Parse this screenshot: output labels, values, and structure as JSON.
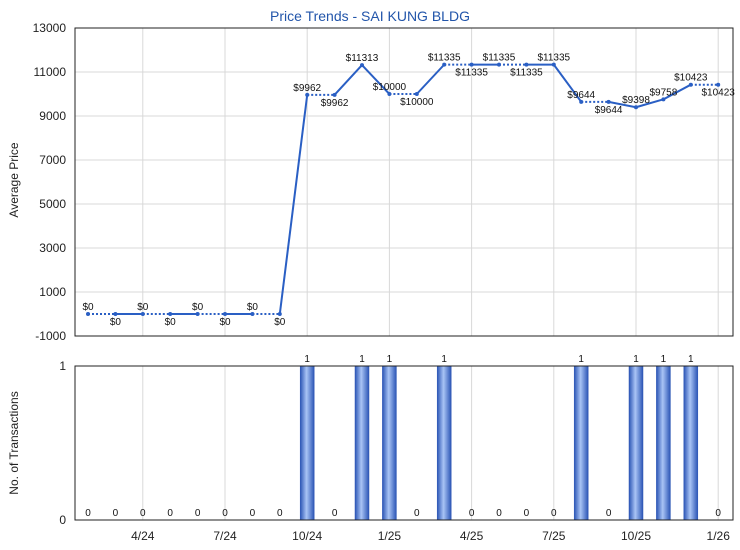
{
  "colors": {
    "title": "#2255aa",
    "line": "#2a5fc4",
    "grid": "#d8d8d8",
    "axis": "#222222",
    "bar_dark": "#2b55b5",
    "bar_light": "#9fbbf0"
  },
  "chart_data": [
    {
      "id": "price",
      "type": "line",
      "title": "Price Trends - SAI KUNG BLDG",
      "ylabel": "Average Price",
      "ylim": [
        -1000,
        13000
      ],
      "yticks": [
        -1000,
        1000,
        3000,
        5000,
        7000,
        9000,
        11000,
        13000
      ],
      "x_period_labels": [
        "4/24",
        "7/24",
        "10/24",
        "1/25",
        "4/25",
        "7/25",
        "10/25",
        "1/26"
      ],
      "grid": true,
      "months": [
        "2/24",
        "3/24",
        "4/24",
        "5/24",
        "6/24",
        "7/24",
        "8/24",
        "9/24",
        "10/24",
        "11/24",
        "12/24",
        "1/25",
        "2/25",
        "3/25",
        "4/25",
        "5/25",
        "6/25",
        "7/25",
        "8/25",
        "9/25",
        "10/25",
        "11/25",
        "12/25",
        "1/26"
      ],
      "values": [
        0,
        0,
        0,
        0,
        0,
        0,
        0,
        0,
        9962,
        9962,
        11313,
        10000,
        10000,
        11335,
        11335,
        11335,
        11335,
        11335,
        9644,
        9644,
        9398,
        9758,
        10423,
        10423
      ],
      "carried": [
        false,
        true,
        false,
        true,
        false,
        true,
        false,
        true,
        false,
        true,
        false,
        false,
        true,
        false,
        true,
        false,
        true,
        false,
        false,
        true,
        false,
        false,
        false,
        true
      ],
      "labels": [
        "$0",
        "$0",
        "$0",
        "$0",
        "$0",
        "$0",
        "$0",
        "$0",
        "$9962",
        "$9962",
        "$11313",
        "$10000",
        "$10000",
        "$11335",
        "$11335",
        "$11335",
        "$11335",
        "$11335",
        "$9644",
        "$9644",
        "$9398",
        "$9758",
        "$10423",
        "$10423"
      ]
    },
    {
      "id": "transactions",
      "type": "bar",
      "ylabel": "No. of Transactions",
      "ylim": [
        0,
        1
      ],
      "yticks": [
        0,
        1
      ],
      "values": [
        0,
        0,
        0,
        0,
        0,
        0,
        0,
        0,
        1,
        0,
        1,
        1,
        0,
        1,
        0,
        0,
        0,
        0,
        1,
        0,
        1,
        1,
        1,
        0
      ],
      "labels": [
        "0",
        "0",
        "0",
        "0",
        "0",
        "0",
        "0",
        "0",
        "1",
        "0",
        "1",
        "1",
        "0",
        "1",
        "0",
        "0",
        "0",
        "0",
        "1",
        "0",
        "1",
        "1",
        "1",
        "0"
      ]
    }
  ]
}
